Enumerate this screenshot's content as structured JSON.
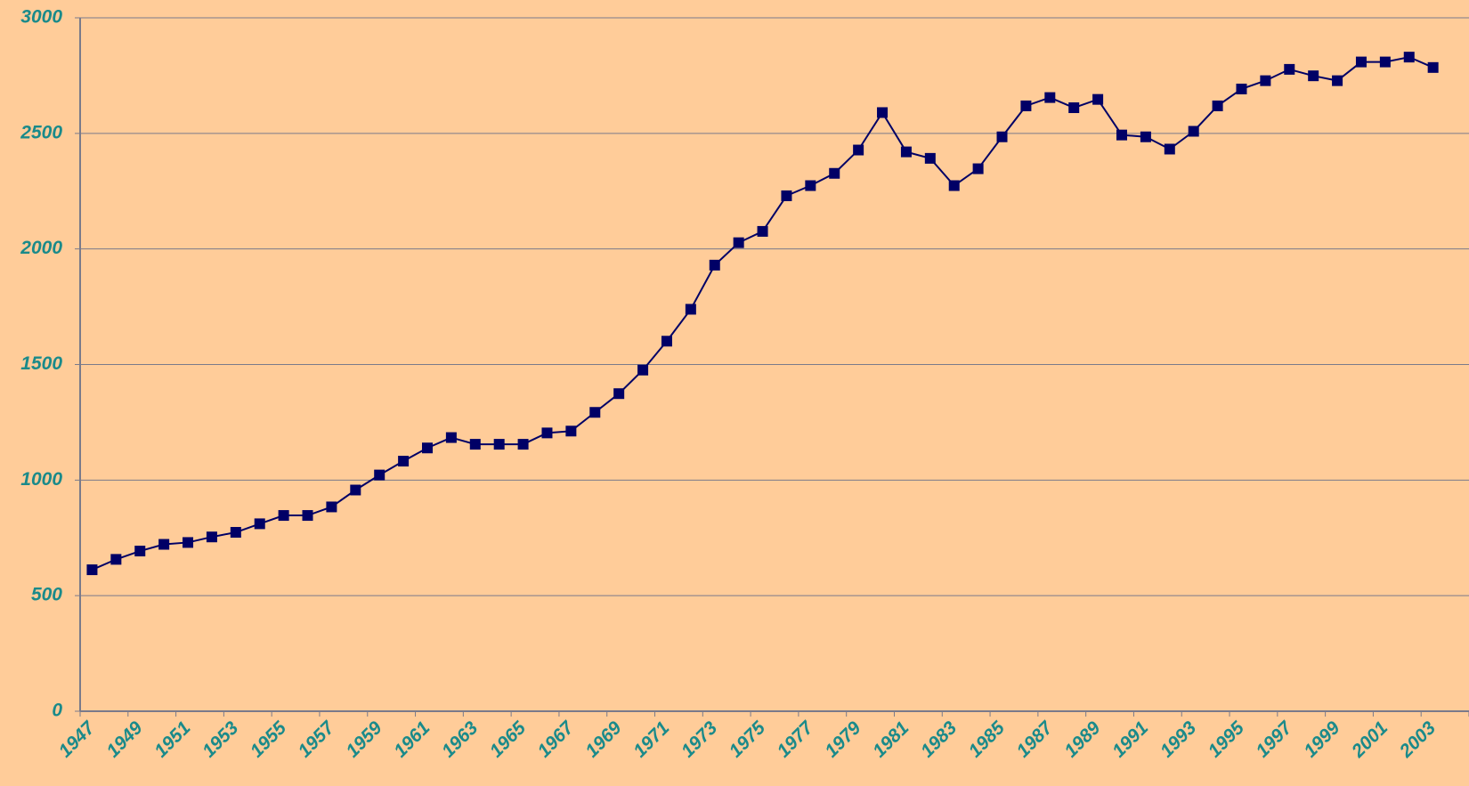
{
  "chart_data": {
    "type": "line",
    "categories": [
      "1947",
      null,
      "1949",
      null,
      "1951",
      null,
      "1953",
      null,
      "1955",
      null,
      "1957",
      null,
      "1959",
      null,
      "1961",
      null,
      "1963",
      null,
      "1965",
      null,
      "1967",
      null,
      "1969",
      null,
      "1971",
      null,
      "1973",
      null,
      "1975",
      null,
      "1977",
      null,
      "1979",
      null,
      "1981",
      null,
      "1983",
      null,
      "1985",
      null,
      "1987",
      null,
      "1989",
      null,
      "1991",
      null,
      "1993",
      null,
      "1995",
      null,
      "1997",
      null,
      "1999",
      null,
      "2001",
      null,
      "2003",
      null
    ],
    "series": [
      {
        "color": "#000066",
        "values": [
          612,
          657,
          693,
          722,
          730,
          754,
          774,
          811,
          847,
          847,
          884,
          957,
          1022,
          1082,
          1139,
          1184,
          1155,
          1155,
          1155,
          1204,
          1212,
          1293,
          1374,
          1476,
          1601,
          1739,
          1930,
          2027,
          2076,
          2230,
          2274,
          2327,
          2428,
          2590,
          2420,
          2392,
          2274,
          2347,
          2485,
          2619,
          2655,
          2611,
          2647,
          2493,
          2485,
          2432,
          2509,
          2619,
          2692,
          2728,
          2777,
          2749,
          2728,
          2809,
          2809,
          2830,
          2785,
          null
        ]
      }
    ],
    "ylim": [
      0,
      3000
    ],
    "yticks": [
      0,
      500,
      1000,
      1500,
      2000,
      2500,
      3000
    ],
    "grid": true
  }
}
